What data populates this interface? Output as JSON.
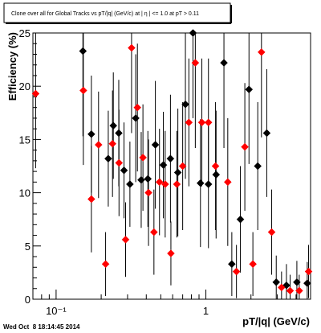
{
  "chart_data": {
    "type": "scatter",
    "title": "Clone over all for Global Tracks vs pT/|q| (GeV/c) at | η | <= 1.0 at pT > 0.11",
    "xlabel": "pT/|q| (GeV/c)",
    "ylabel": "Efficiency (%)",
    "x_scale": "log",
    "xlim": [
      0.07,
      5.0
    ],
    "ylim": [
      0,
      25
    ],
    "x_ticks": [
      {
        "value": 0.1,
        "label": "10⁻¹"
      },
      {
        "value": 1,
        "label": "1"
      }
    ],
    "y_ticks": [
      0,
      5,
      10,
      15,
      20,
      25
    ],
    "grid": false,
    "legend": "none",
    "series": [
      {
        "color": "#000000",
        "marker": "diamond",
        "points": [
          {
            "x": 0.151,
            "y": 23.3,
            "err": 8.0
          },
          {
            "x": 0.172,
            "y": 15.5,
            "err": 5.5
          },
          {
            "x": 0.223,
            "y": 13.2,
            "err": 4.5
          },
          {
            "x": 0.241,
            "y": 16.3,
            "err": 5.0
          },
          {
            "x": 0.262,
            "y": 15.6,
            "err": 5.0
          },
          {
            "x": 0.284,
            "y": 12.1,
            "err": 4.5
          },
          {
            "x": 0.311,
            "y": 10.8,
            "err": 4.0
          },
          {
            "x": 0.34,
            "y": 17.0,
            "err": 6.0
          },
          {
            "x": 0.37,
            "y": 11.2,
            "err": 4.5
          },
          {
            "x": 0.41,
            "y": 11.3,
            "err": 4.5
          },
          {
            "x": 0.46,
            "y": 14.5,
            "err": 6.0
          },
          {
            "x": 0.52,
            "y": 12.6,
            "err": 5.0
          },
          {
            "x": 0.58,
            "y": 13.2,
            "err": 6.0
          },
          {
            "x": 0.65,
            "y": 11.9,
            "err": 6.0
          },
          {
            "x": 0.73,
            "y": 18.3,
            "err": 7.0
          },
          {
            "x": 0.82,
            "y": 25.0,
            "err": 8.0
          },
          {
            "x": 0.92,
            "y": 10.9,
            "err": 6.0
          },
          {
            "x": 1.04,
            "y": 10.8,
            "err": 6.0
          },
          {
            "x": 1.17,
            "y": 11.7,
            "err": 6.0
          },
          {
            "x": 1.32,
            "y": 22.2,
            "err": 8.0
          },
          {
            "x": 1.49,
            "y": 3.3,
            "err": 3.0
          },
          {
            "x": 1.7,
            "y": 7.5,
            "err": 5.0
          },
          {
            "x": 1.94,
            "y": 19.7,
            "err": 7.0
          },
          {
            "x": 2.22,
            "y": 12.5,
            "err": 6.0
          },
          {
            "x": 2.55,
            "y": 15.6,
            "err": 6.0
          },
          {
            "x": 2.95,
            "y": 1.6,
            "err": 2.5
          },
          {
            "x": 3.45,
            "y": 1.3,
            "err": 2.0
          },
          {
            "x": 4.05,
            "y": 1.6,
            "err": 2.0
          },
          {
            "x": 4.75,
            "y": 1.5,
            "err": 2.0
          }
        ]
      },
      {
        "color": "#ff0000",
        "marker": "diamond",
        "points": [
          {
            "x": 0.073,
            "y": 19.3,
            "err": 7.0
          },
          {
            "x": 0.152,
            "y": 19.6,
            "err": 7.0
          },
          {
            "x": 0.172,
            "y": 9.4,
            "err": 5.0
          },
          {
            "x": 0.192,
            "y": 14.5,
            "err": 5.0
          },
          {
            "x": 0.214,
            "y": 3.3,
            "err": 3.0
          },
          {
            "x": 0.238,
            "y": 14.6,
            "err": 5.0
          },
          {
            "x": 0.263,
            "y": 12.8,
            "err": 5.0
          },
          {
            "x": 0.291,
            "y": 5.6,
            "err": 3.5
          },
          {
            "x": 0.319,
            "y": 23.6,
            "err": 8.0
          },
          {
            "x": 0.349,
            "y": 18.0,
            "err": 6.0
          },
          {
            "x": 0.38,
            "y": 13.3,
            "err": 5.0
          },
          {
            "x": 0.414,
            "y": 10.0,
            "err": 5.0
          },
          {
            "x": 0.45,
            "y": 6.3,
            "err": 4.0
          },
          {
            "x": 0.49,
            "y": 11.0,
            "err": 5.0
          },
          {
            "x": 0.535,
            "y": 10.8,
            "err": 5.0
          },
          {
            "x": 0.584,
            "y": 4.3,
            "err": 3.0
          },
          {
            "x": 0.64,
            "y": 10.8,
            "err": 5.0
          },
          {
            "x": 0.7,
            "y": 12.5,
            "err": 6.0
          },
          {
            "x": 0.77,
            "y": 16.6,
            "err": 6.0
          },
          {
            "x": 0.85,
            "y": 22.2,
            "err": 8.0
          },
          {
            "x": 0.94,
            "y": 16.6,
            "err": 6.0
          },
          {
            "x": 1.04,
            "y": 16.6,
            "err": 6.0
          },
          {
            "x": 1.16,
            "y": 12.5,
            "err": 6.0
          },
          {
            "x": 1.4,
            "y": 11.0,
            "err": 6.0
          },
          {
            "x": 1.6,
            "y": 2.6,
            "err": 2.5
          },
          {
            "x": 1.82,
            "y": 14.3,
            "err": 6.0
          },
          {
            "x": 2.06,
            "y": 3.3,
            "err": 3.0
          },
          {
            "x": 2.35,
            "y": 23.2,
            "err": 8.0
          },
          {
            "x": 2.75,
            "y": 6.3,
            "err": 4.0
          },
          {
            "x": 3.2,
            "y": 1.1,
            "err": 1.5
          },
          {
            "x": 3.65,
            "y": 0.8,
            "err": 1.5
          },
          {
            "x": 4.2,
            "y": 0.8,
            "err": 1.5
          },
          {
            "x": 4.85,
            "y": 2.6,
            "err": 2.5
          }
        ]
      }
    ]
  },
  "footer": {
    "timestamp": "Wed Oct  8 18:14:45 2014"
  }
}
